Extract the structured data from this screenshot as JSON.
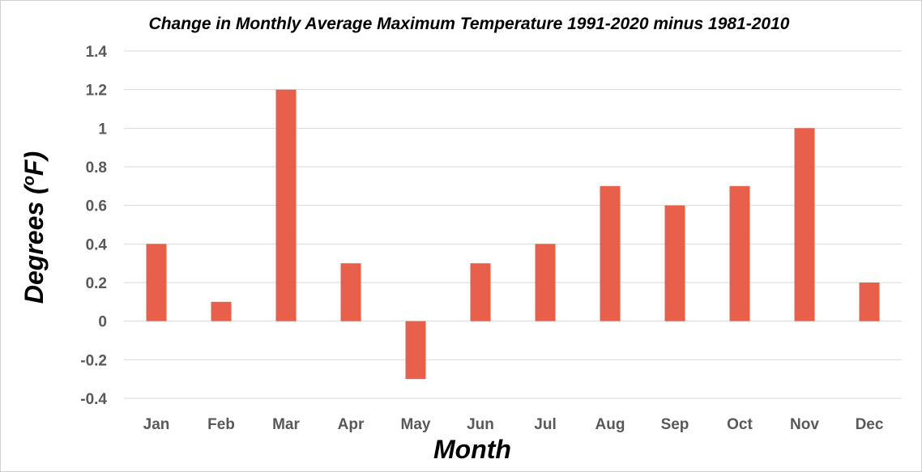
{
  "chart_data": {
    "type": "bar",
    "title": "Change in Monthly Average Maximum Temperature 1991-2020 minus 1981-2010",
    "xlabel": "Month",
    "ylabel_prefix": "Degrees (",
    "ylabel_superscript": "o",
    "ylabel_suffix": "F)",
    "categories": [
      "Jan",
      "Feb",
      "Mar",
      "Apr",
      "May",
      "Jun",
      "Jul",
      "Aug",
      "Sep",
      "Oct",
      "Nov",
      "Dec"
    ],
    "values": [
      0.4,
      0.1,
      1.2,
      0.3,
      -0.3,
      0.3,
      0.4,
      0.7,
      0.6,
      0.7,
      1.0,
      0.2
    ],
    "ylim": [
      -0.4,
      1.4
    ],
    "yticks": [
      -0.4,
      -0.2,
      0,
      0.2,
      0.4,
      0.6,
      0.8,
      1,
      1.2,
      1.4
    ],
    "ytick_labels": [
      "-0.4",
      "-0.2",
      "0",
      "0.2",
      "0.4",
      "0.6",
      "0.8",
      "1",
      "1.2",
      "1.4"
    ],
    "grid": true,
    "legend": "none",
    "bar_color": "#e8604a",
    "grid_color": "#d9d9d9"
  }
}
